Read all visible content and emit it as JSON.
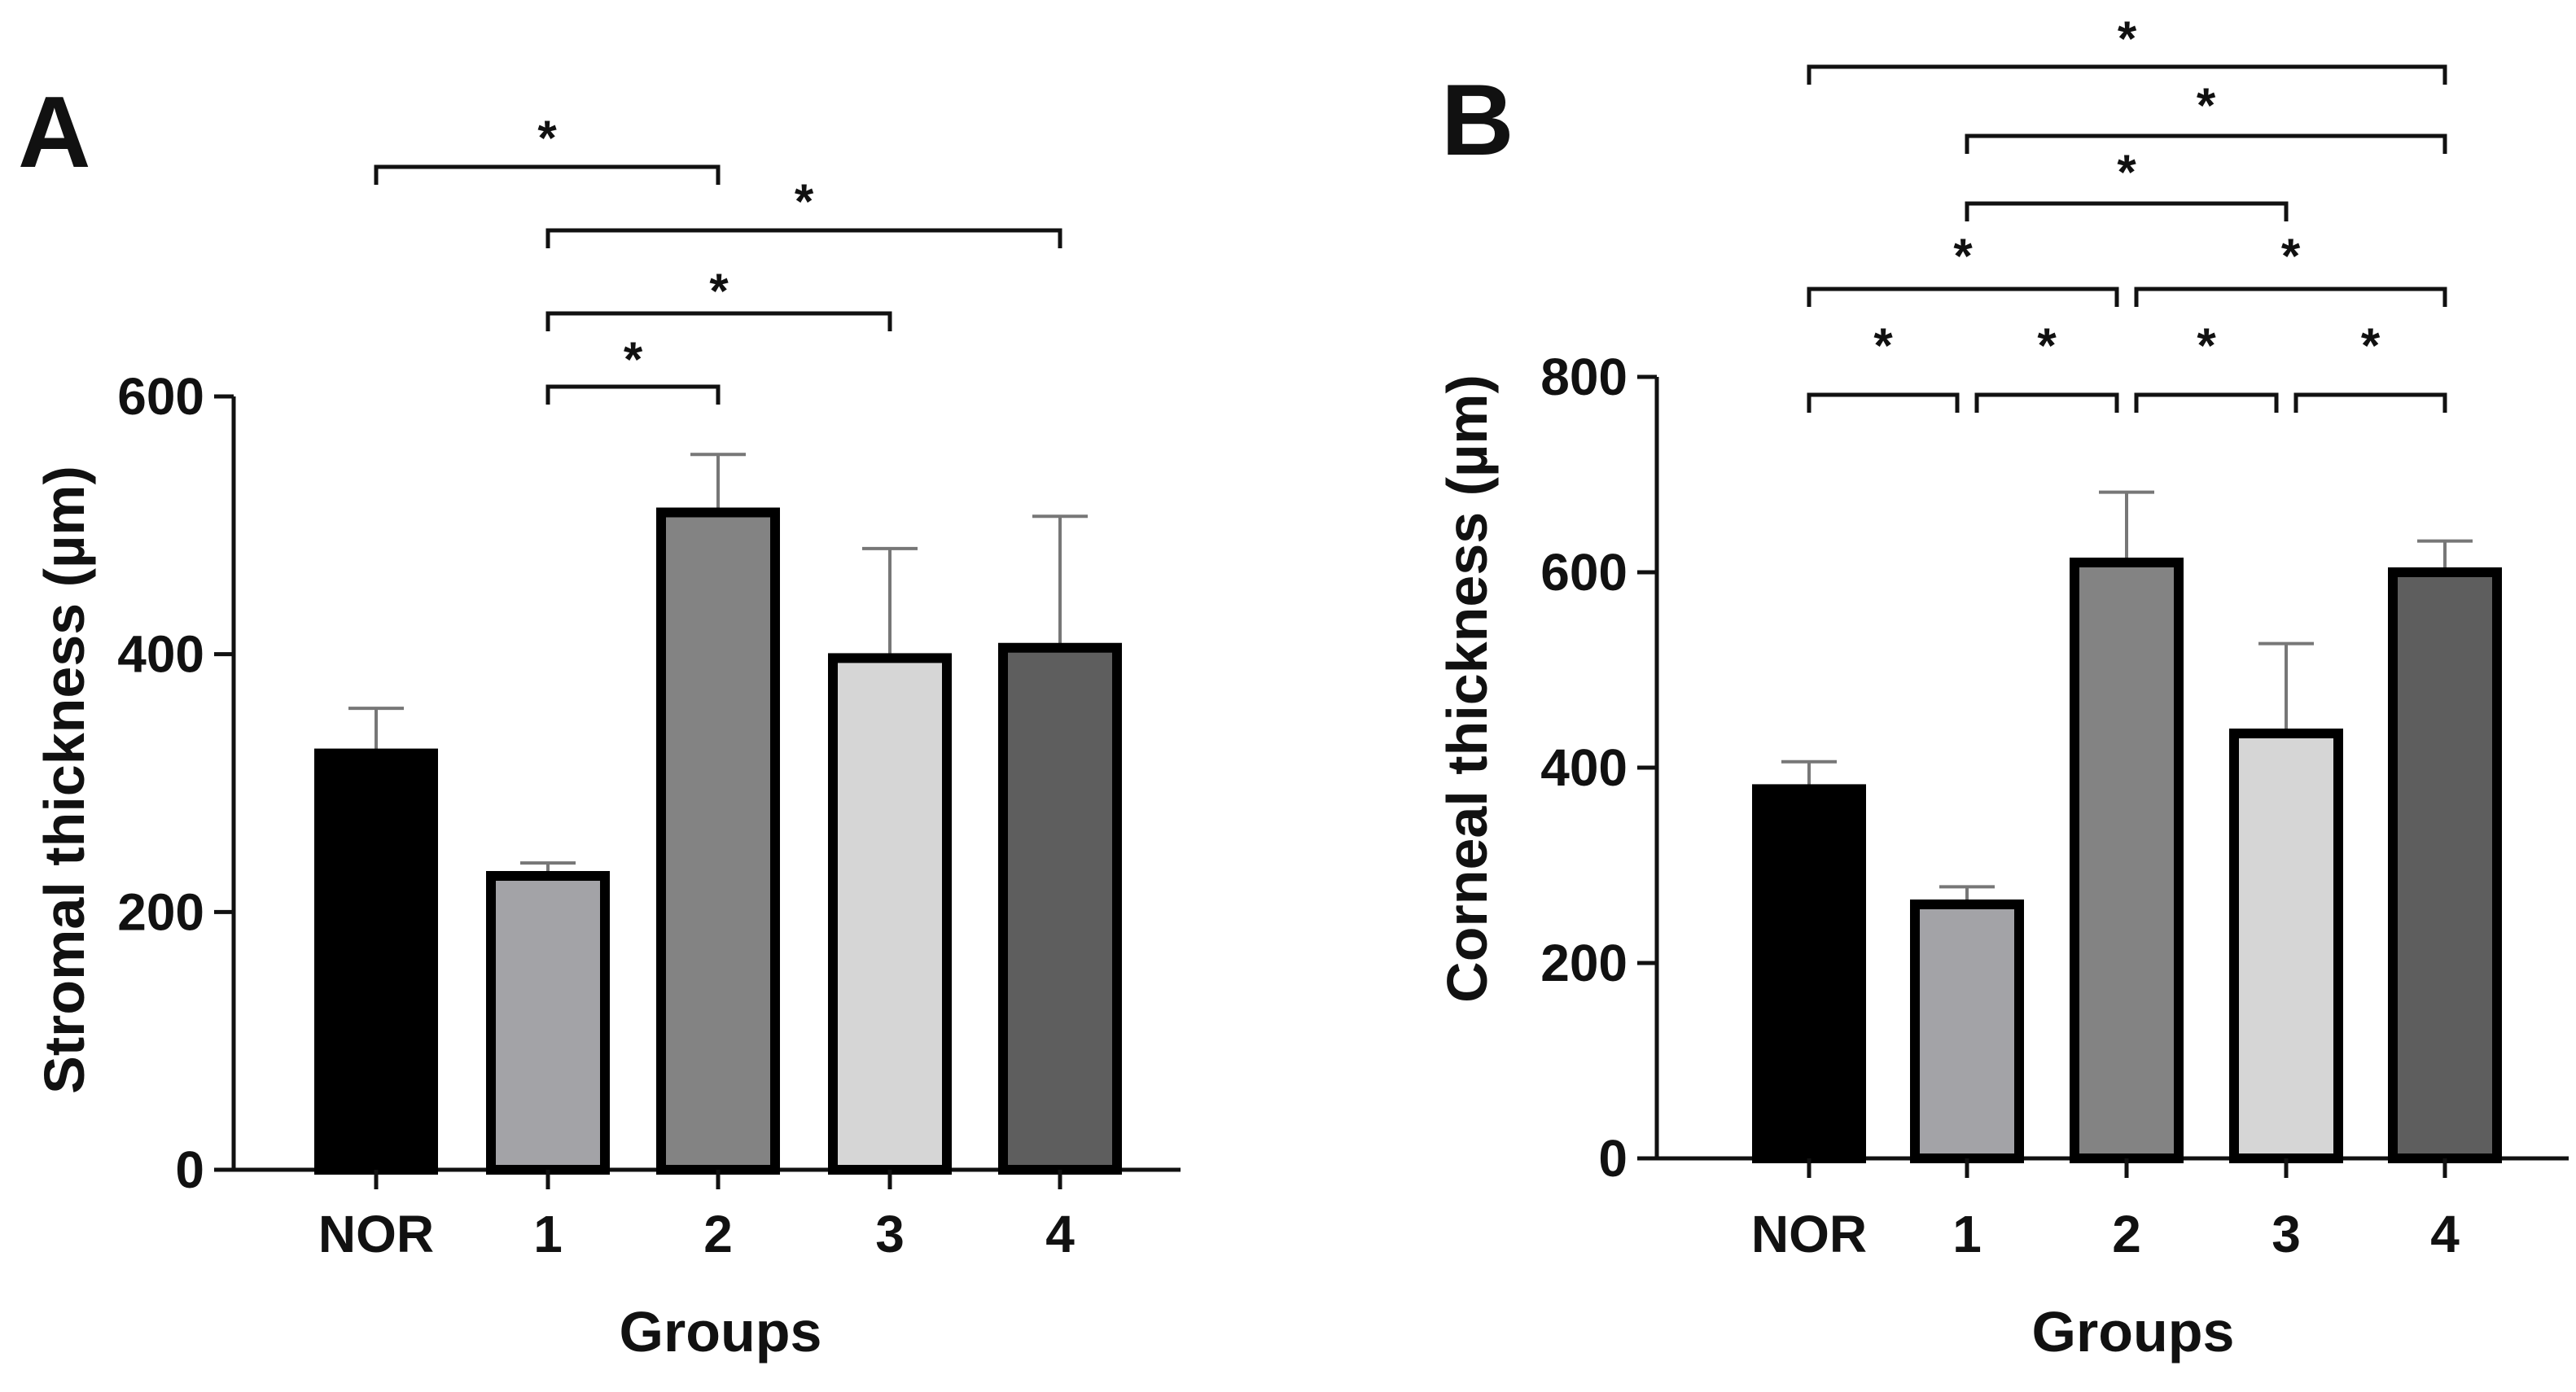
{
  "chart_data": [
    {
      "type": "bar",
      "panel_label": "A",
      "categories": [
        "NOR",
        "1",
        "2",
        "3",
        "4"
      ],
      "values": [
        323,
        228,
        510,
        397,
        405
      ],
      "errors": [
        35,
        10,
        45,
        85,
        102
      ],
      "colors": [
        "#000000",
        "#a3a3a7",
        "#838383",
        "#d6d6d6",
        "#5e5e5e"
      ],
      "ylabel": "Stromal thickness (µm)",
      "xlabel": "Groups",
      "ylim": [
        0,
        600
      ],
      "yticks": [
        0,
        200,
        400,
        600
      ],
      "significance": [
        {
          "from": 0,
          "to": 2,
          "label": "*"
        },
        {
          "from": 1,
          "to": 4,
          "label": "*"
        },
        {
          "from": 1,
          "to": 3,
          "label": "*"
        },
        {
          "from": 1,
          "to": 2,
          "label": "*"
        }
      ]
    },
    {
      "type": "bar",
      "panel_label": "B",
      "categories": [
        "NOR",
        "1",
        "2",
        "3",
        "4"
      ],
      "values": [
        378,
        260,
        610,
        435,
        600
      ],
      "errors": [
        28,
        18,
        72,
        92,
        32
      ],
      "colors": [
        "#000000",
        "#a3a3a7",
        "#838383",
        "#d6d6d6",
        "#5e5e5e"
      ],
      "ylabel": "Corneal thickness (µm)",
      "xlabel": "Groups",
      "ylim": [
        0,
        800
      ],
      "yticks": [
        0,
        200,
        400,
        600,
        800
      ],
      "significance": [
        {
          "from": 0,
          "to": 4,
          "label": "*"
        },
        {
          "from": 1,
          "to": 4,
          "label": "*"
        },
        {
          "from": 1,
          "to": 3,
          "label": "*"
        },
        {
          "from": 0,
          "to": 2,
          "label": "*"
        },
        {
          "from": 2,
          "to": 4,
          "label": "*"
        },
        {
          "from": 0,
          "to": 1,
          "label": "*"
        },
        {
          "from": 1,
          "to": 2,
          "label": "*"
        },
        {
          "from": 2,
          "to": 3,
          "label": "*"
        },
        {
          "from": 3,
          "to": 4,
          "label": "*"
        }
      ]
    }
  ]
}
